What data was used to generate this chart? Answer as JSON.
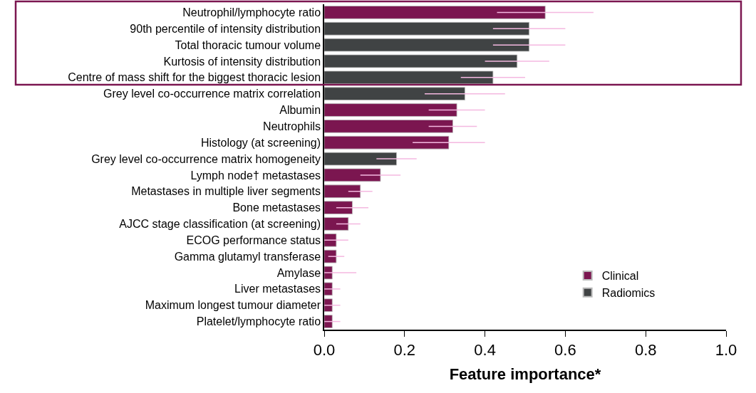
{
  "chart_data": {
    "type": "bar",
    "orientation": "horizontal",
    "xlabel": "Feature importance*",
    "categories": [
      "Neutrophil/lymphocyte ratio",
      "90th percentile of intensity distribution",
      "Total thoracic tumour volume",
      "Kurtosis of intensity distribution",
      "Centre of mass shift for the biggest thoracic lesion",
      "Grey level co-occurrence matrix correlation",
      "Albumin",
      "Neutrophils",
      "Histology (at screening)",
      "Grey level co-occurrence matrix homogeneity",
      "Lymph node† metastases",
      "Metastases in multiple liver segments",
      "Bone metastases",
      "AJCC stage classification (at screening)",
      "ECOG performance status",
      "Gamma glutamyl transferase",
      "Amylase",
      "Liver metastases",
      "Maximum longest tumour diameter",
      "Platelet/lymphocyte ratio"
    ],
    "series": [
      {
        "name": "Clinical",
        "color": "#7b1650",
        "values": [
          0.55,
          null,
          null,
          null,
          null,
          null,
          0.33,
          0.32,
          0.31,
          null,
          0.14,
          0.09,
          0.07,
          0.06,
          0.03,
          0.03,
          0.02,
          0.02,
          0.02,
          0.02
        ],
        "errors": [
          [
            0.43,
            0.67
          ],
          null,
          null,
          null,
          null,
          null,
          [
            0.26,
            0.4
          ],
          [
            0.26,
            0.38
          ],
          [
            0.22,
            0.4
          ],
          null,
          [
            0.09,
            0.19
          ],
          [
            0.06,
            0.12
          ],
          [
            0.03,
            0.11
          ],
          [
            0.03,
            0.09
          ],
          [
            0.0,
            0.06
          ],
          [
            0.01,
            0.05
          ],
          [
            0.0,
            0.08
          ],
          [
            0.0,
            0.04
          ],
          [
            0.0,
            0.04
          ],
          [
            0.0,
            0.04
          ]
        ]
      },
      {
        "name": "Radiomics",
        "color": "#404344",
        "values": [
          null,
          0.51,
          0.51,
          0.48,
          0.42,
          0.35,
          null,
          null,
          null,
          0.18,
          null,
          null,
          null,
          null,
          null,
          null,
          null,
          null,
          null,
          null
        ],
        "errors": [
          null,
          [
            0.42,
            0.6
          ],
          [
            0.42,
            0.6
          ],
          [
            0.4,
            0.56
          ],
          [
            0.34,
            0.5
          ],
          [
            0.25,
            0.45
          ],
          null,
          null,
          null,
          [
            0.13,
            0.23
          ],
          null,
          null,
          null,
          null,
          null,
          null,
          null,
          null,
          null,
          null
        ]
      }
    ],
    "xlim": [
      0,
      1.0
    ],
    "xticks": [
      {
        "value": 0,
        "label": "0.0"
      },
      {
        "value": 0.2,
        "label": "0.2"
      },
      {
        "value": 0.4,
        "label": "0.4"
      },
      {
        "value": 0.6,
        "label": "0.6"
      },
      {
        "value": 0.8,
        "label": "0.8"
      },
      {
        "value": 1.0,
        "label": "1.0"
      }
    ],
    "legend": "bottom right"
  }
}
